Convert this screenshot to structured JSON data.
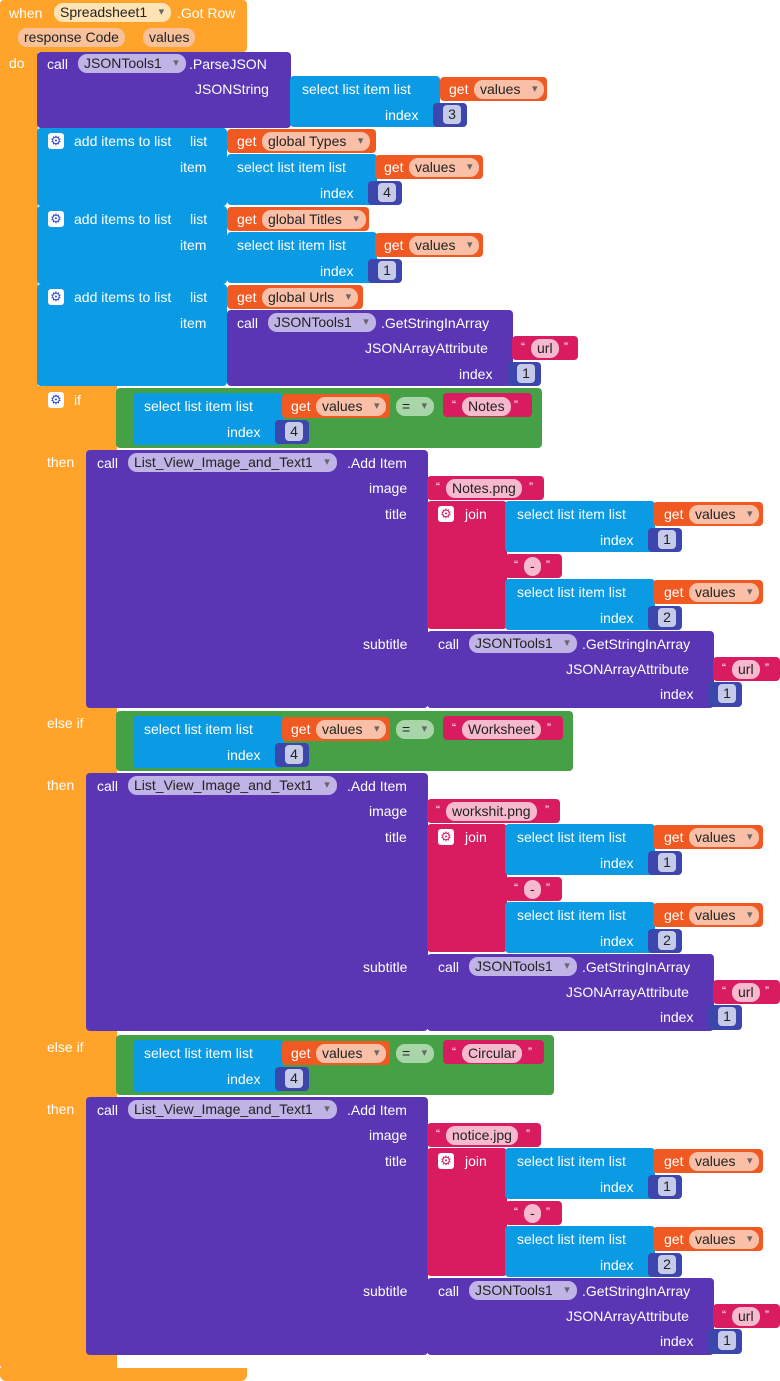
{
  "event": {
    "when_label": "when",
    "component": "Spreadsheet1",
    "event_name": ".Got Row",
    "params": [
      "response Code",
      "values"
    ],
    "do_label": "do"
  },
  "parse": {
    "call_label": "call",
    "component": "JSONTools1",
    "method": ".ParseJSON",
    "arg_label": "JSONString",
    "select_label": "select list item  list",
    "get_label": "get",
    "var": "values",
    "index_label": "index",
    "index": "3"
  },
  "adds": [
    {
      "label": "add items to list",
      "list_label": "list",
      "item_label": "item",
      "get_label": "get",
      "var": "global Types",
      "select_label": "select list item  list",
      "inner_get": "get",
      "inner_var": "values",
      "index_label": "index",
      "index": "4"
    },
    {
      "label": "add items to list",
      "list_label": "list",
      "item_label": "item",
      "get_label": "get",
      "var": "global Titles",
      "select_label": "select list item  list",
      "inner_get": "get",
      "inner_var": "values",
      "index_label": "index",
      "index": "1"
    },
    {
      "label": "add items to list",
      "list_label": "list",
      "item_label": "item",
      "get_label": "get",
      "var": "global Urls",
      "call_label": "call",
      "component": "JSONTools1",
      "method": ".GetStringInArray",
      "attr_label": "JSONArrayAttribute",
      "attr_value": "url",
      "index_label": "index",
      "index": "1"
    }
  ],
  "branches": [
    {
      "keyword": "if",
      "then_label": "then",
      "cond": {
        "select_label": "select list item  list",
        "get_label": "get",
        "var": "values",
        "index_label": "index",
        "index": "4",
        "op": "=",
        "text": "Notes"
      },
      "call": {
        "call_label": "call",
        "component": "List_View_Image_and_Text1",
        "method": ".Add Item",
        "image_label": "image",
        "image": "Notes.png",
        "title_label": "title",
        "join_label": "join",
        "sel1_label": "select list item  list",
        "sel1_get": "get",
        "sel1_var": "values",
        "sel1_index_label": "index",
        "sel1_index": "1",
        "sep": "-",
        "sel2_label": "select list item  list",
        "sel2_get": "get",
        "sel2_var": "values",
        "sel2_index_label": "index",
        "sel2_index": "2",
        "subtitle_label": "subtitle",
        "sub_call_label": "call",
        "sub_component": "JSONTools1",
        "sub_method": ".GetStringInArray",
        "attr_label": "JSONArrayAttribute",
        "attr_value": "url",
        "sub_index_label": "index",
        "sub_index": "1"
      }
    },
    {
      "keyword": "else if",
      "then_label": "then",
      "cond": {
        "select_label": "select list item  list",
        "get_label": "get",
        "var": "values",
        "index_label": "index",
        "index": "4",
        "op": "=",
        "text": "Worksheet"
      },
      "call": {
        "call_label": "call",
        "component": "List_View_Image_and_Text1",
        "method": ".Add Item",
        "image_label": "image",
        "image": "workshit.png",
        "title_label": "title",
        "join_label": "join",
        "sel1_label": "select list item  list",
        "sel1_get": "get",
        "sel1_var": "values",
        "sel1_index_label": "index",
        "sel1_index": "1",
        "sep": "-",
        "sel2_label": "select list item  list",
        "sel2_get": "get",
        "sel2_var": "values",
        "sel2_index_label": "index",
        "sel2_index": "2",
        "subtitle_label": "subtitle",
        "sub_call_label": "call",
        "sub_component": "JSONTools1",
        "sub_method": ".GetStringInArray",
        "attr_label": "JSONArrayAttribute",
        "attr_value": "url",
        "sub_index_label": "index",
        "sub_index": "1"
      }
    },
    {
      "keyword": "else if",
      "then_label": "then",
      "cond": {
        "select_label": "select list item  list",
        "get_label": "get",
        "var": "values",
        "index_label": "index",
        "index": "4",
        "op": "=",
        "text": "Circular"
      },
      "call": {
        "call_label": "call",
        "component": "List_View_Image_and_Text1",
        "method": ".Add Item",
        "image_label": "image",
        "image": "notice.jpg",
        "title_label": "title",
        "join_label": "join",
        "sel1_label": "select list item  list",
        "sel1_get": "get",
        "sel1_var": "values",
        "sel1_index_label": "index",
        "sel1_index": "1",
        "sep": "-",
        "sel2_label": "select list item  list",
        "sel2_get": "get",
        "sel2_var": "values",
        "sel2_index_label": "index",
        "sel2_index": "2",
        "subtitle_label": "subtitle",
        "sub_call_label": "call",
        "sub_component": "JSONTools1",
        "sub_method": ".GetStringInArray",
        "attr_label": "JSONArrayAttribute",
        "attr_value": "url",
        "sub_index_label": "index",
        "sub_index": "1"
      }
    }
  ],
  "colors": {
    "event": "#FFA32B",
    "procedure": "#5A36B4",
    "list": "#0B9BE5",
    "number": "#3D46AC",
    "variable": "#F05A22",
    "text": "#D91B60",
    "logic": "#46A046"
  }
}
